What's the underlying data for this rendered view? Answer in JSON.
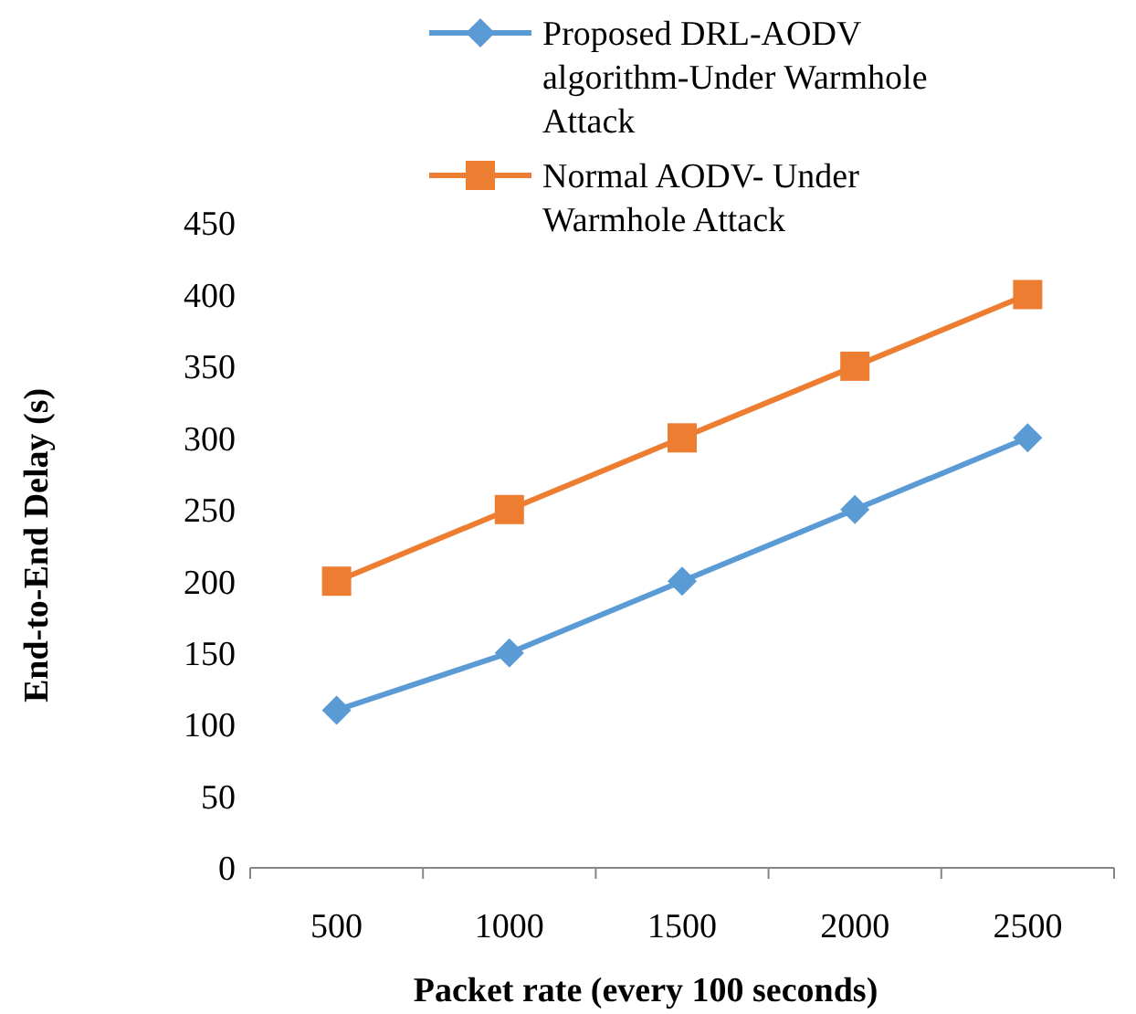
{
  "chart_data": {
    "type": "line",
    "xlabel": "Packet rate (every 100 seconds)",
    "ylabel": "End-to-End Delay (s)",
    "categories": [
      "500",
      "1000",
      "1500",
      "2000",
      "2500"
    ],
    "series": [
      {
        "name": "Proposed DRL-AODV algorithm-Under Warmhole Attack",
        "color": "#5b9bd5",
        "values": [
          110,
          150,
          200,
          250,
          300
        ],
        "marker": "diamond"
      },
      {
        "name": "Normal AODV- Under Warmhole Attack",
        "color": "#ed7d31",
        "values": [
          200,
          250,
          300,
          350,
          400
        ],
        "marker": "square"
      }
    ],
    "ylim": [
      0,
      450
    ],
    "yticks": [
      0,
      50,
      100,
      150,
      200,
      250,
      300,
      350,
      400,
      450
    ],
    "grid": false,
    "legend": "top right",
    "line_style": "solid"
  }
}
